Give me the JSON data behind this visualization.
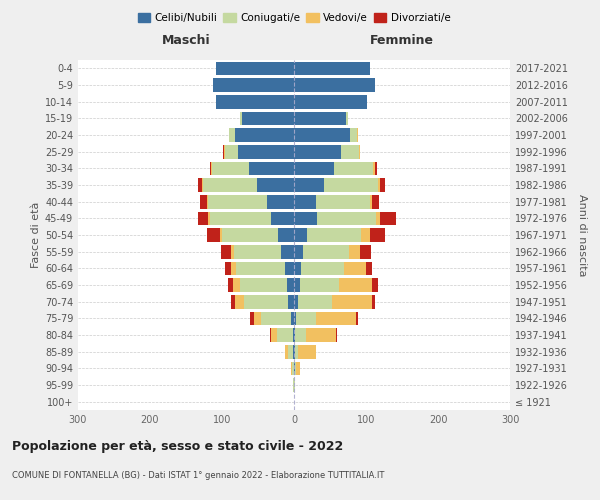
{
  "age_groups": [
    "100+",
    "95-99",
    "90-94",
    "85-89",
    "80-84",
    "75-79",
    "70-74",
    "65-69",
    "60-64",
    "55-59",
    "50-54",
    "45-49",
    "40-44",
    "35-39",
    "30-34",
    "25-29",
    "20-24",
    "15-19",
    "10-14",
    "5-9",
    "0-4"
  ],
  "birth_years": [
    "≤ 1921",
    "1922-1926",
    "1927-1931",
    "1932-1936",
    "1937-1941",
    "1942-1946",
    "1947-1951",
    "1952-1956",
    "1957-1961",
    "1962-1966",
    "1967-1971",
    "1972-1976",
    "1977-1981",
    "1982-1986",
    "1987-1991",
    "1992-1996",
    "1997-2001",
    "2002-2006",
    "2007-2011",
    "2012-2016",
    "2017-2021"
  ],
  "male": {
    "celibi": [
      0,
      0,
      0,
      1,
      2,
      4,
      8,
      10,
      12,
      18,
      22,
      32,
      38,
      52,
      62,
      78,
      82,
      72,
      108,
      112,
      108
    ],
    "coniugati": [
      0,
      1,
      3,
      8,
      22,
      42,
      62,
      65,
      68,
      65,
      78,
      85,
      82,
      75,
      52,
      18,
      8,
      3,
      0,
      0,
      0
    ],
    "vedovi": [
      0,
      0,
      1,
      3,
      8,
      10,
      12,
      10,
      8,
      5,
      3,
      2,
      1,
      1,
      1,
      1,
      0,
      0,
      0,
      0,
      0
    ],
    "divorziati": [
      0,
      0,
      0,
      0,
      1,
      5,
      5,
      6,
      8,
      14,
      18,
      14,
      10,
      6,
      2,
      1,
      0,
      0,
      0,
      0,
      0
    ]
  },
  "female": {
    "nubili": [
      0,
      0,
      1,
      1,
      2,
      3,
      5,
      8,
      10,
      12,
      18,
      32,
      30,
      42,
      55,
      65,
      78,
      72,
      102,
      112,
      105
    ],
    "coniugate": [
      0,
      1,
      2,
      5,
      14,
      28,
      48,
      55,
      60,
      65,
      75,
      82,
      75,
      75,
      55,
      25,
      10,
      3,
      0,
      0,
      0
    ],
    "vedove": [
      0,
      1,
      5,
      25,
      42,
      55,
      55,
      45,
      30,
      15,
      12,
      5,
      3,
      2,
      2,
      1,
      1,
      0,
      0,
      0,
      0
    ],
    "divorziate": [
      0,
      0,
      0,
      0,
      2,
      3,
      5,
      8,
      8,
      15,
      22,
      22,
      10,
      8,
      3,
      1,
      0,
      0,
      0,
      0,
      0
    ]
  },
  "colors": {
    "celibi": "#3B6FA0",
    "coniugati": "#C5D9A0",
    "vedovi": "#F2C060",
    "divorziati": "#C0221A"
  },
  "title": "Popolazione per età, sesso e stato civile - 2022",
  "subtitle": "COMUNE DI FONTANELLA (BG) - Dati ISTAT 1° gennaio 2022 - Elaborazione TUTTITALIA.IT",
  "header_left": "Maschi",
  "header_right": "Femmine",
  "ylabel_left": "Fasce di età",
  "ylabel_right": "Anni di nascita",
  "xlim": 300,
  "bg_color": "#efefef",
  "plot_bg_color": "#ffffff",
  "legend_labels": [
    "Celibi/Nubili",
    "Coniugati/e",
    "Vedovi/e",
    "Divorziati/e"
  ]
}
